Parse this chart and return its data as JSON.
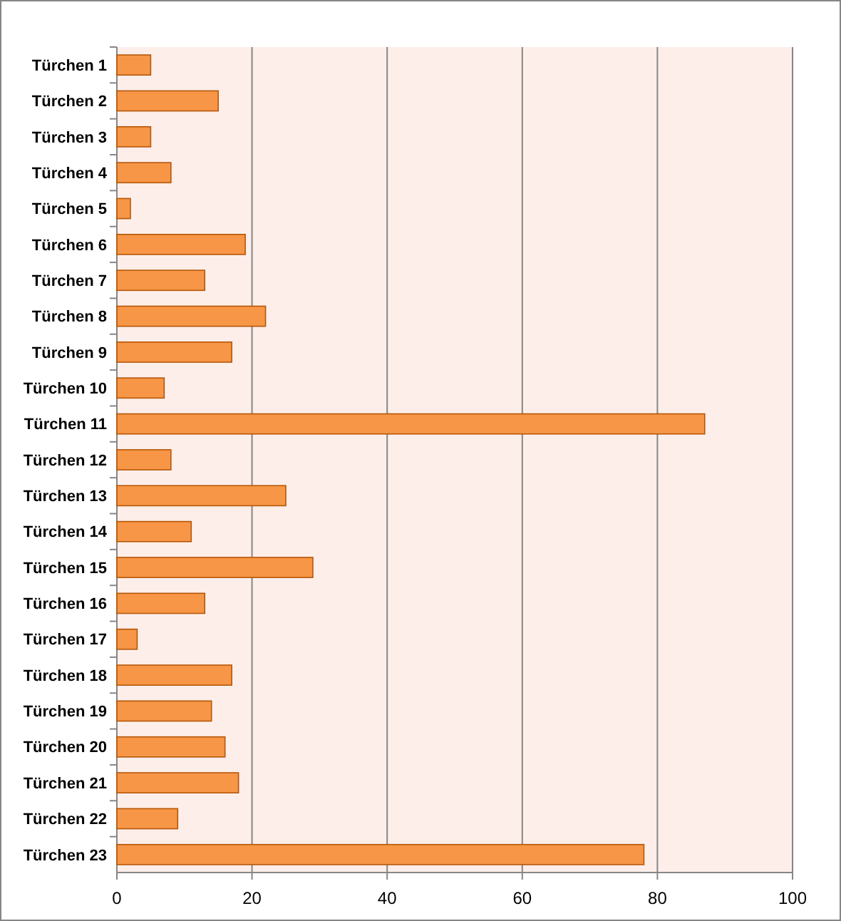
{
  "chart_data": {
    "type": "bar",
    "orientation": "horizontal",
    "categories": [
      "Türchen 1",
      "Türchen 2",
      "Türchen 3",
      "Türchen 4",
      "Türchen 5",
      "Türchen 6",
      "Türchen 7",
      "Türchen 8",
      "Türchen 9",
      "Türchen 10",
      "Türchen 11",
      "Türchen 12",
      "Türchen 13",
      "Türchen 14",
      "Türchen 15",
      "Türchen 16",
      "Türchen 17",
      "Türchen 18",
      "Türchen 19",
      "Türchen 20",
      "Türchen 21",
      "Türchen 22",
      "Türchen 23"
    ],
    "values": [
      5,
      15,
      5,
      8,
      2,
      19,
      13,
      22,
      17,
      7,
      87,
      8,
      25,
      11,
      29,
      13,
      3,
      17,
      14,
      16,
      18,
      9,
      78
    ],
    "color": "#f79646",
    "xlim": [
      0,
      100
    ],
    "xticks": [
      0,
      20,
      40,
      60,
      80,
      100
    ],
    "grid": "x"
  }
}
